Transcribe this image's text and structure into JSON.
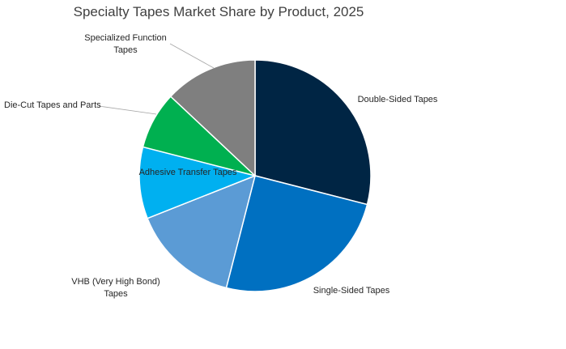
{
  "chart_data": {
    "type": "pie",
    "title": "Specialty Tapes Market Share by Product, 2025",
    "slices": [
      {
        "label": "Double-Sided Tapes",
        "value": 29,
        "color": "#002544"
      },
      {
        "label": "Single-Sided Tapes",
        "value": 25,
        "color": "#0070c1"
      },
      {
        "label": "VHB (Very High Bond) Tapes",
        "value": 15,
        "color": "#5b9bd5"
      },
      {
        "label": "Adhesive Transfer Tapes",
        "value": 10,
        "color": "#00b0f0"
      },
      {
        "label": "Die-Cut Tapes and Parts",
        "value": 8,
        "color": "#00b050"
      },
      {
        "label": "Specialized Function Tapes",
        "value": 13,
        "color": "#7f7f7f"
      }
    ],
    "legend": "none",
    "start_angle_deg": 0,
    "direction": "clockwise"
  }
}
